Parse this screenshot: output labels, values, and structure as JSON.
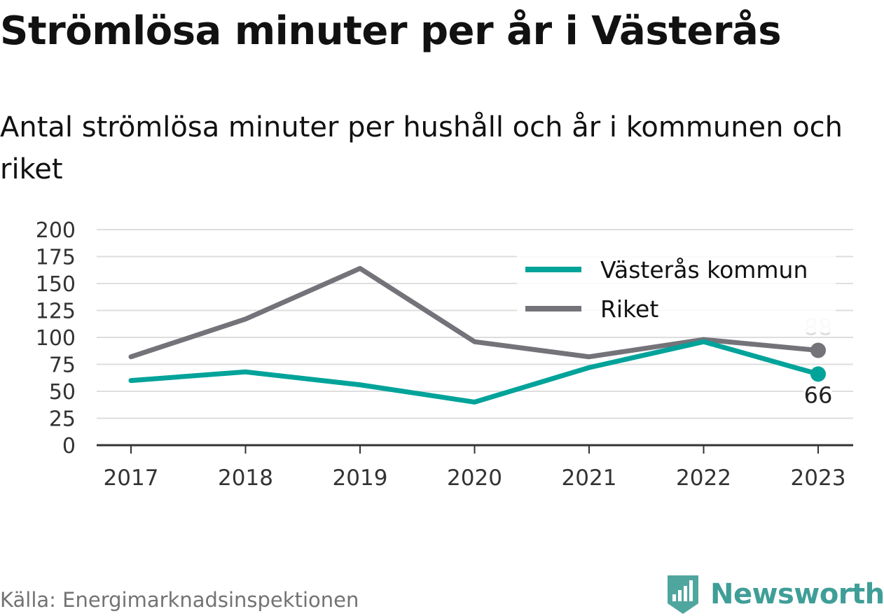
{
  "header": {
    "title": "Strömlösa minuter per år i Västerås",
    "subtitle": "Antal strömlösa minuter per hushåll och år i kommunen och riket"
  },
  "footer": {
    "source": "Källa: Energimarknadsinspektionen",
    "brand": "Newsworthy",
    "brand_icon": "newsworthy-logo-icon"
  },
  "chart_data": {
    "type": "line",
    "x": [
      "2017",
      "2018",
      "2019",
      "2020",
      "2021",
      "2022",
      "2023"
    ],
    "ylim": [
      0,
      200
    ],
    "yticks": [
      "0",
      "25",
      "50",
      "75",
      "100",
      "125",
      "150",
      "175",
      "200"
    ],
    "grid": true,
    "legend_position": "top-right",
    "series": [
      {
        "name": "Västerås kommun",
        "color": "#00a39a",
        "values": [
          60,
          68,
          56,
          40,
          72,
          96,
          66
        ],
        "end_label": "66"
      },
      {
        "name": "Riket",
        "color": "#747379",
        "values": [
          82,
          117,
          164,
          96,
          82,
          98,
          88
        ],
        "end_label": "88"
      }
    ]
  }
}
